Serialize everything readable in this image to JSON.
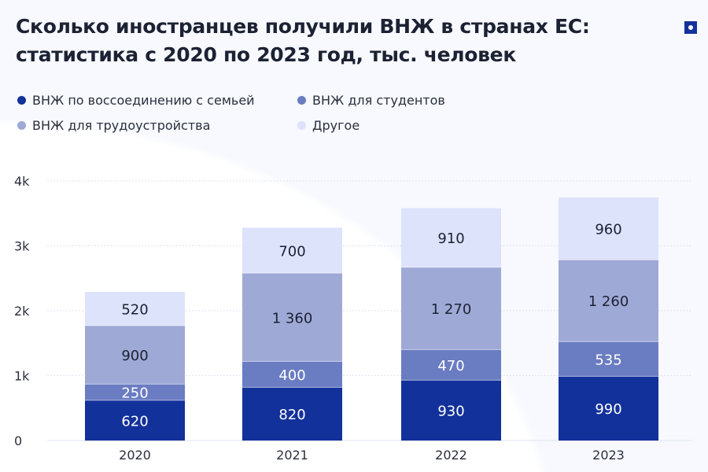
{
  "title_lines": [
    "Сколько иностранцев получили ВНЖ в странах ЕС:",
    "статистика с 2020 по 2023 год, тыс. человек"
  ],
  "logo_icon": "brand-square-dot-icon",
  "chart_data": {
    "type": "bar",
    "stacked": true,
    "title": "Сколько иностранцев получили ВНЖ в странах ЕС: статистика с 2020 по 2023 год, тыс. человек",
    "categories": [
      "2020",
      "2021",
      "2022",
      "2023"
    ],
    "series": [
      {
        "name": "ВНЖ по воссоединению с семьей",
        "color": "#13319a",
        "label_color": "#ffffff",
        "values": [
          620,
          820,
          930,
          990
        ],
        "labels": [
          "620",
          "820",
          "930",
          "990"
        ]
      },
      {
        "name": "ВНЖ для студентов",
        "color": "#6a7cc2",
        "label_color": "#ffffff",
        "values": [
          250,
          400,
          470,
          535
        ],
        "labels": [
          "250",
          "400",
          "470",
          "535"
        ]
      },
      {
        "name": "ВНЖ для трудоустройства",
        "color": "#9ea9d6",
        "label_color": "#1c2233",
        "values": [
          900,
          1360,
          1270,
          1260
        ],
        "labels": [
          "900",
          "1 360",
          "1 270",
          "1 260"
        ]
      },
      {
        "name": "Другое",
        "color": "#dde3fb",
        "label_color": "#1c2233",
        "values": [
          520,
          700,
          910,
          960
        ],
        "labels": [
          "520",
          "700",
          "910",
          "960"
        ]
      }
    ],
    "ylim": [
      0,
      4000
    ],
    "yticks": [
      0,
      1000,
      2000,
      3000,
      4000
    ],
    "ytick_labels": [
      "0",
      "1k",
      "2k",
      "3k",
      "4k"
    ],
    "grid": true,
    "legend_placement": "top-left"
  }
}
